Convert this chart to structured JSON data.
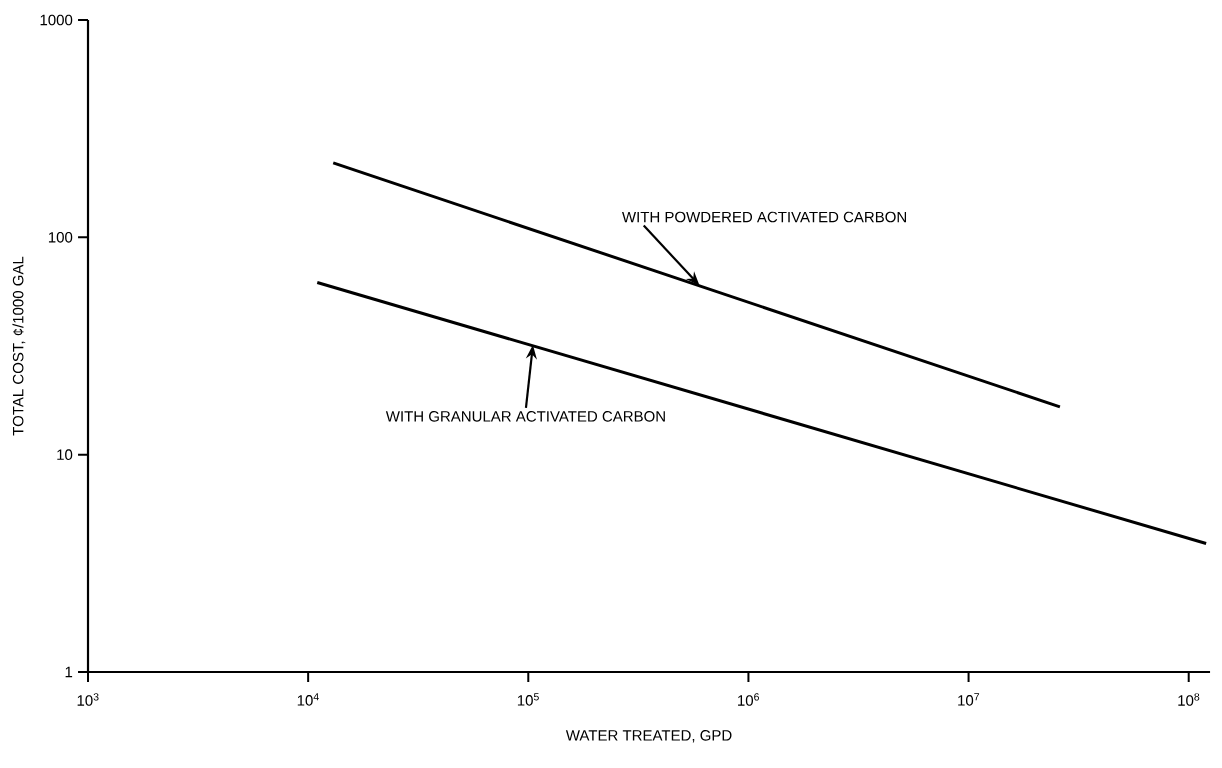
{
  "chart_data": {
    "type": "line",
    "xlabel": "WATER TREATED, GPD",
    "ylabel": "TOTAL COST, ¢/1000 GAL",
    "log": "xy",
    "grid": false,
    "marker": "none",
    "line_style": "solid",
    "xlim": [
      1000,
      125000000
    ],
    "ylim": [
      1,
      1000
    ],
    "xticks": [
      {
        "value": 1000,
        "label": "10$^{3}$"
      },
      {
        "value": 10000,
        "label": "10$^{4}$"
      },
      {
        "value": 100000,
        "label": "10$^{5}$"
      },
      {
        "value": 1000000,
        "label": "10$^{6}$"
      },
      {
        "value": 10000000,
        "label": "10$^{7}$"
      },
      {
        "value": 100000000,
        "label": "10$^{8}$"
      }
    ],
    "yticks": [
      1,
      10,
      100,
      1000
    ],
    "series": [
      {
        "color": "#000000",
        "x": [
          13000,
          26000000
        ],
        "values": [
          220,
          16.6
        ]
      },
      {
        "color": "#000000",
        "x": [
          11000,
          120000000
        ],
        "values": [
          62,
          3.9
        ]
      }
    ],
    "annotations": [
      {
        "text": "WITH POWDERED ACTIVATED CARBON",
        "x": 600000,
        "y": 60
      },
      {
        "text": "WITH GRANULAR ACTIVATED CARBON",
        "x": 105000,
        "y": 32
      }
    ]
  }
}
